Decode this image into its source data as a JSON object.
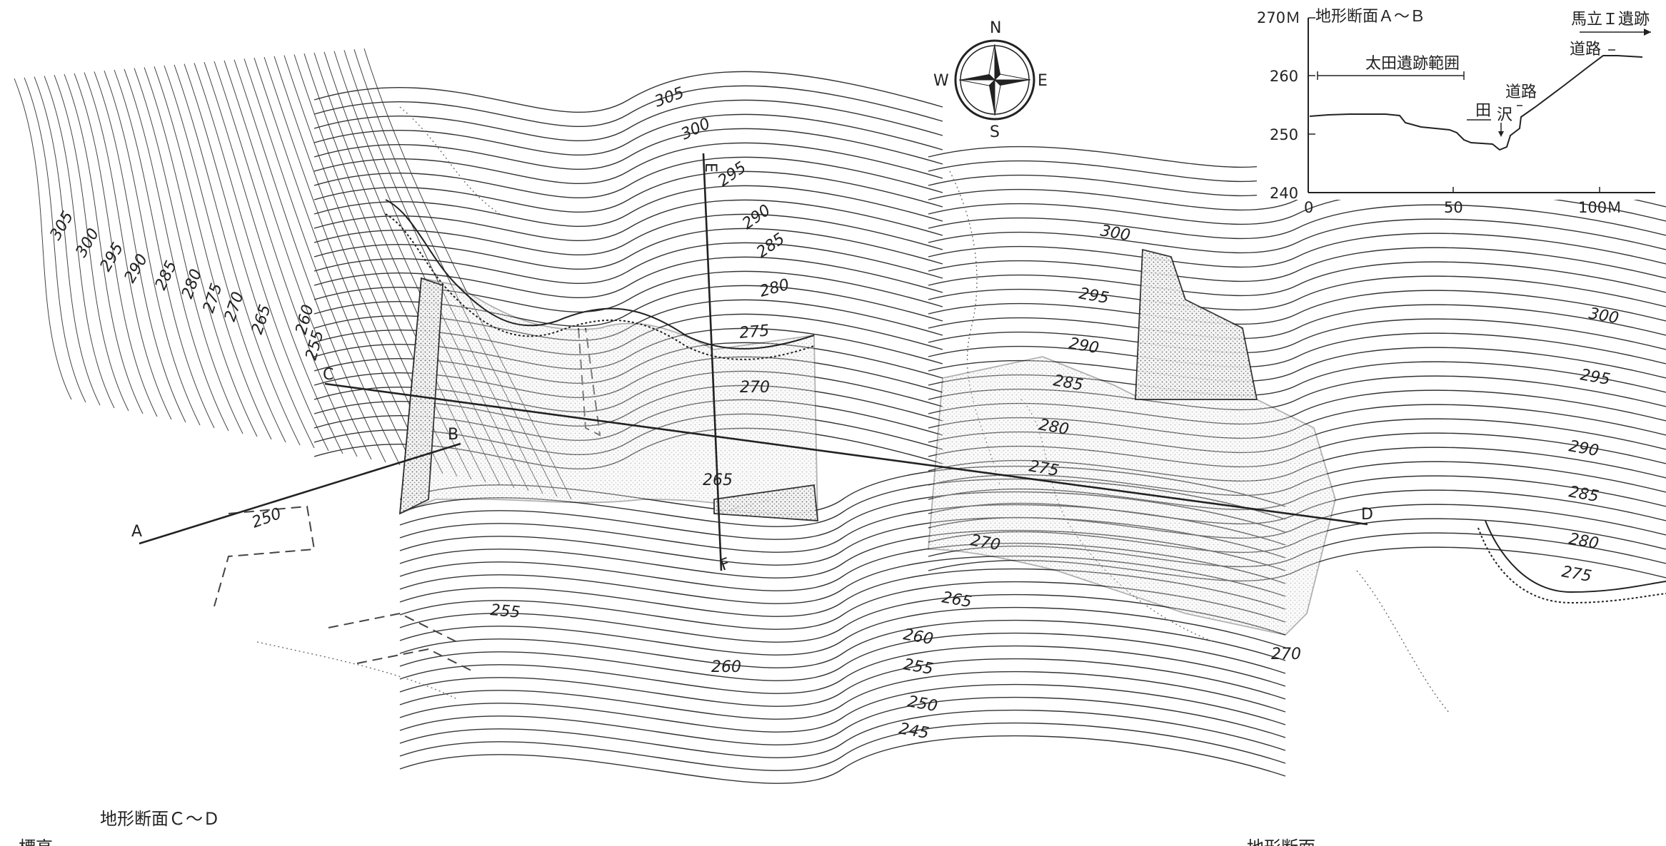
{
  "compass": {
    "north": "N",
    "east": "E",
    "south": "S",
    "west": "W"
  },
  "contour_labels": [
    {
      "text": "305"
    },
    {
      "text": "300"
    },
    {
      "text": "295"
    },
    {
      "text": "290"
    },
    {
      "text": "285"
    },
    {
      "text": "280"
    },
    {
      "text": "275"
    },
    {
      "text": "270"
    },
    {
      "text": "265"
    },
    {
      "text": "260"
    },
    {
      "text": "255"
    },
    {
      "text": "250"
    },
    {
      "text": "305"
    },
    {
      "text": "300"
    },
    {
      "text": "295"
    },
    {
      "text": "290"
    },
    {
      "text": "285"
    },
    {
      "text": "280"
    },
    {
      "text": "275"
    },
    {
      "text": "270"
    },
    {
      "text": "265"
    },
    {
      "text": "255"
    },
    {
      "text": "260"
    },
    {
      "text": "300"
    },
    {
      "text": "295"
    },
    {
      "text": "290"
    },
    {
      "text": "285"
    },
    {
      "text": "280"
    },
    {
      "text": "275"
    },
    {
      "text": "270"
    },
    {
      "text": "265"
    },
    {
      "text": "260"
    },
    {
      "text": "255"
    },
    {
      "text": "250"
    },
    {
      "text": "245"
    },
    {
      "text": "270"
    },
    {
      "text": "300"
    },
    {
      "text": "295"
    },
    {
      "text": "290"
    },
    {
      "text": "285"
    },
    {
      "text": "280"
    },
    {
      "text": "275"
    }
  ],
  "section_points": {
    "a": "A",
    "b": "B",
    "c": "C",
    "d": "D",
    "e": "E",
    "f": "F"
  },
  "profile_ab": {
    "title": "地形断面Ａ～Ｂ",
    "y_axis_ticks": [
      "270Ｍ",
      "260",
      "250",
      "240"
    ],
    "x_axis_ticks": [
      "0",
      "50",
      "100Ｍ"
    ],
    "site_range_label": "太田遺跡範囲",
    "rice_field_label": "田",
    "stream_label": "沢",
    "road_label_1": "道路",
    "road_label_2": "道路",
    "umatate_label": "馬立Ｉ遺跡"
  },
  "profile_cd_title": "地形断面Ｃ～Ｄ",
  "elevation_label": "標高",
  "cut_off_label": "地形断面"
}
